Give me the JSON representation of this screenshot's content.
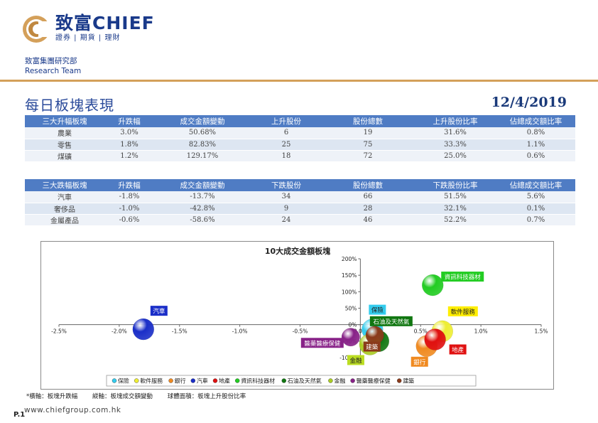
{
  "header": {
    "brand_name": "致富CHIEF",
    "brand_sub": "證券 | 期貨 | 理財",
    "dept_line1": "致富集團研究部",
    "dept_line2": "Research Team",
    "brand_color": "#1a3a8a",
    "accent_color": "#d4a05a"
  },
  "page": {
    "title": "每日板塊表現",
    "date": "12/4/2019",
    "page_number": "P.1",
    "website": "www.chiefgroup.com.hk"
  },
  "rise_table": {
    "headers": [
      "三大升幅板塊",
      "升跌幅",
      "成交金額變動",
      "上升股份",
      "股份總數",
      "上升股份比率",
      "佔總成交額比率"
    ],
    "rows": [
      [
        "農業",
        "3.0%",
        "50.68%",
        "6",
        "19",
        "31.6%",
        "0.8%"
      ],
      [
        "零售",
        "1.8%",
        "82.83%",
        "25",
        "75",
        "33.3%",
        "1.1%"
      ],
      [
        "煤礦",
        "1.2%",
        "129.17%",
        "18",
        "72",
        "25.0%",
        "0.6%"
      ]
    ]
  },
  "fall_table": {
    "headers": [
      "三大跌幅板塊",
      "升跌幅",
      "成交金額變動",
      "下跌股份",
      "股份總數",
      "下跌股份比率",
      "佔總成交額比率"
    ],
    "rows": [
      [
        "汽車",
        "-1.8%",
        "-13.7%",
        "34",
        "66",
        "51.5%",
        "5.6%"
      ],
      [
        "奢侈品",
        "-1.0%",
        "-42.8%",
        "9",
        "28",
        "32.1%",
        "0.1%"
      ],
      [
        "金屬產品",
        "-0.6%",
        "-58.6%",
        "24",
        "46",
        "52.2%",
        "0.7%"
      ]
    ]
  },
  "footnote": {
    "x_note": "*橫軸：板塊升跌幅",
    "y_note": "縱軸：板塊成交額變動",
    "size_note": "球體面積：板塊上升股份比率"
  },
  "chart_data": {
    "type": "scatter",
    "title": "10大成交金額板塊",
    "xlim": [
      -2.5,
      1.5
    ],
    "ylim": [
      -100,
      200
    ],
    "x_ticks": [
      "-2.5%",
      "-2.0%",
      "-1.5%",
      "-1.0%",
      "-0.5%",
      "0.0%",
      "0.5%",
      "1.0%",
      "1.5%"
    ],
    "y_ticks": [
      "-100%",
      "-50%",
      "0%",
      "50%",
      "100%",
      "150%",
      "200%"
    ],
    "grid": false,
    "legend_position": "bottom",
    "series": [
      {
        "name": "保險",
        "x": 0.1,
        "y": -15,
        "color": "#33ccee",
        "label_color": "#33ccee",
        "size": 1.0
      },
      {
        "name": "軟件服務",
        "x": 0.68,
        "y": -20,
        "color": "#eeee33",
        "label_color": "#ffee00",
        "size": 1.0
      },
      {
        "name": "銀行",
        "x": 0.55,
        "y": -65,
        "color": "#f08a20",
        "label_color": "#f08a20",
        "size": 1.0
      },
      {
        "name": "汽車",
        "x": -1.8,
        "y": -14,
        "color": "#1a2ec8",
        "label_color": "#1a2ec8",
        "size": 1.0
      },
      {
        "name": "地產",
        "x": 0.62,
        "y": -45,
        "color": "#e01010",
        "label_color": "#e01010",
        "size": 1.0
      },
      {
        "name": "資訊科技器材",
        "x": 0.6,
        "y": 120,
        "color": "#22cc22",
        "label_color": "#22cc22",
        "size": 1.0
      },
      {
        "name": "石油及天然氣",
        "x": 0.15,
        "y": -50,
        "color": "#117711",
        "label_color": "#117711",
        "size": 1.0
      },
      {
        "name": "金融",
        "x": 0.08,
        "y": -60,
        "color": "#aacc22",
        "label_color": "#bbdd22",
        "size": 1.0
      },
      {
        "name": "醫藥醫療保健",
        "x": -0.08,
        "y": -38,
        "color": "#882288",
        "label_color": "#882288",
        "size": 0.85
      },
      {
        "name": "建築",
        "x": 0.12,
        "y": -32,
        "color": "#8a3a1a",
        "label_color": "#8a3a1a",
        "size": 0.85
      }
    ]
  }
}
